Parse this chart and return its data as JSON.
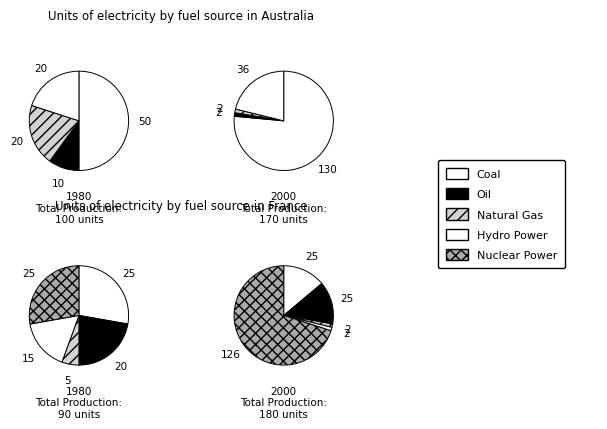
{
  "title_australia": "Units of electricity by fuel source in Australia",
  "title_france": "Units of electricity by fuel source in France",
  "australia_1980": [
    50,
    10,
    20,
    20,
    0
  ],
  "australia_2000": [
    130,
    2,
    2,
    36,
    0
  ],
  "france_1980": [
    25,
    20,
    5,
    15,
    25
  ],
  "france_2000": [
    25,
    25,
    2,
    2,
    126
  ],
  "australia_1980_labels": [
    "50",
    "10",
    "20",
    "20",
    ""
  ],
  "australia_2000_labels": [
    "130",
    "2",
    "2",
    "36",
    ""
  ],
  "france_1980_labels": [
    "25",
    "20",
    "5",
    "15",
    "25"
  ],
  "france_2000_labels": [
    "25",
    "25",
    "2",
    "2",
    "126"
  ],
  "australia_1980_sub": "1980\nTotal Production:\n100 units",
  "australia_2000_sub": "2000\nTotal Production:\n170 units",
  "france_1980_sub": "1980\nTotal Production:\n90 units",
  "france_2000_sub": "2000\nTotal Production:\n180 units",
  "legend_labels": [
    "Coal",
    "Oil",
    "Natural Gas",
    "Hydro Power",
    "Nuclear Power"
  ],
  "background": "#ffffff"
}
